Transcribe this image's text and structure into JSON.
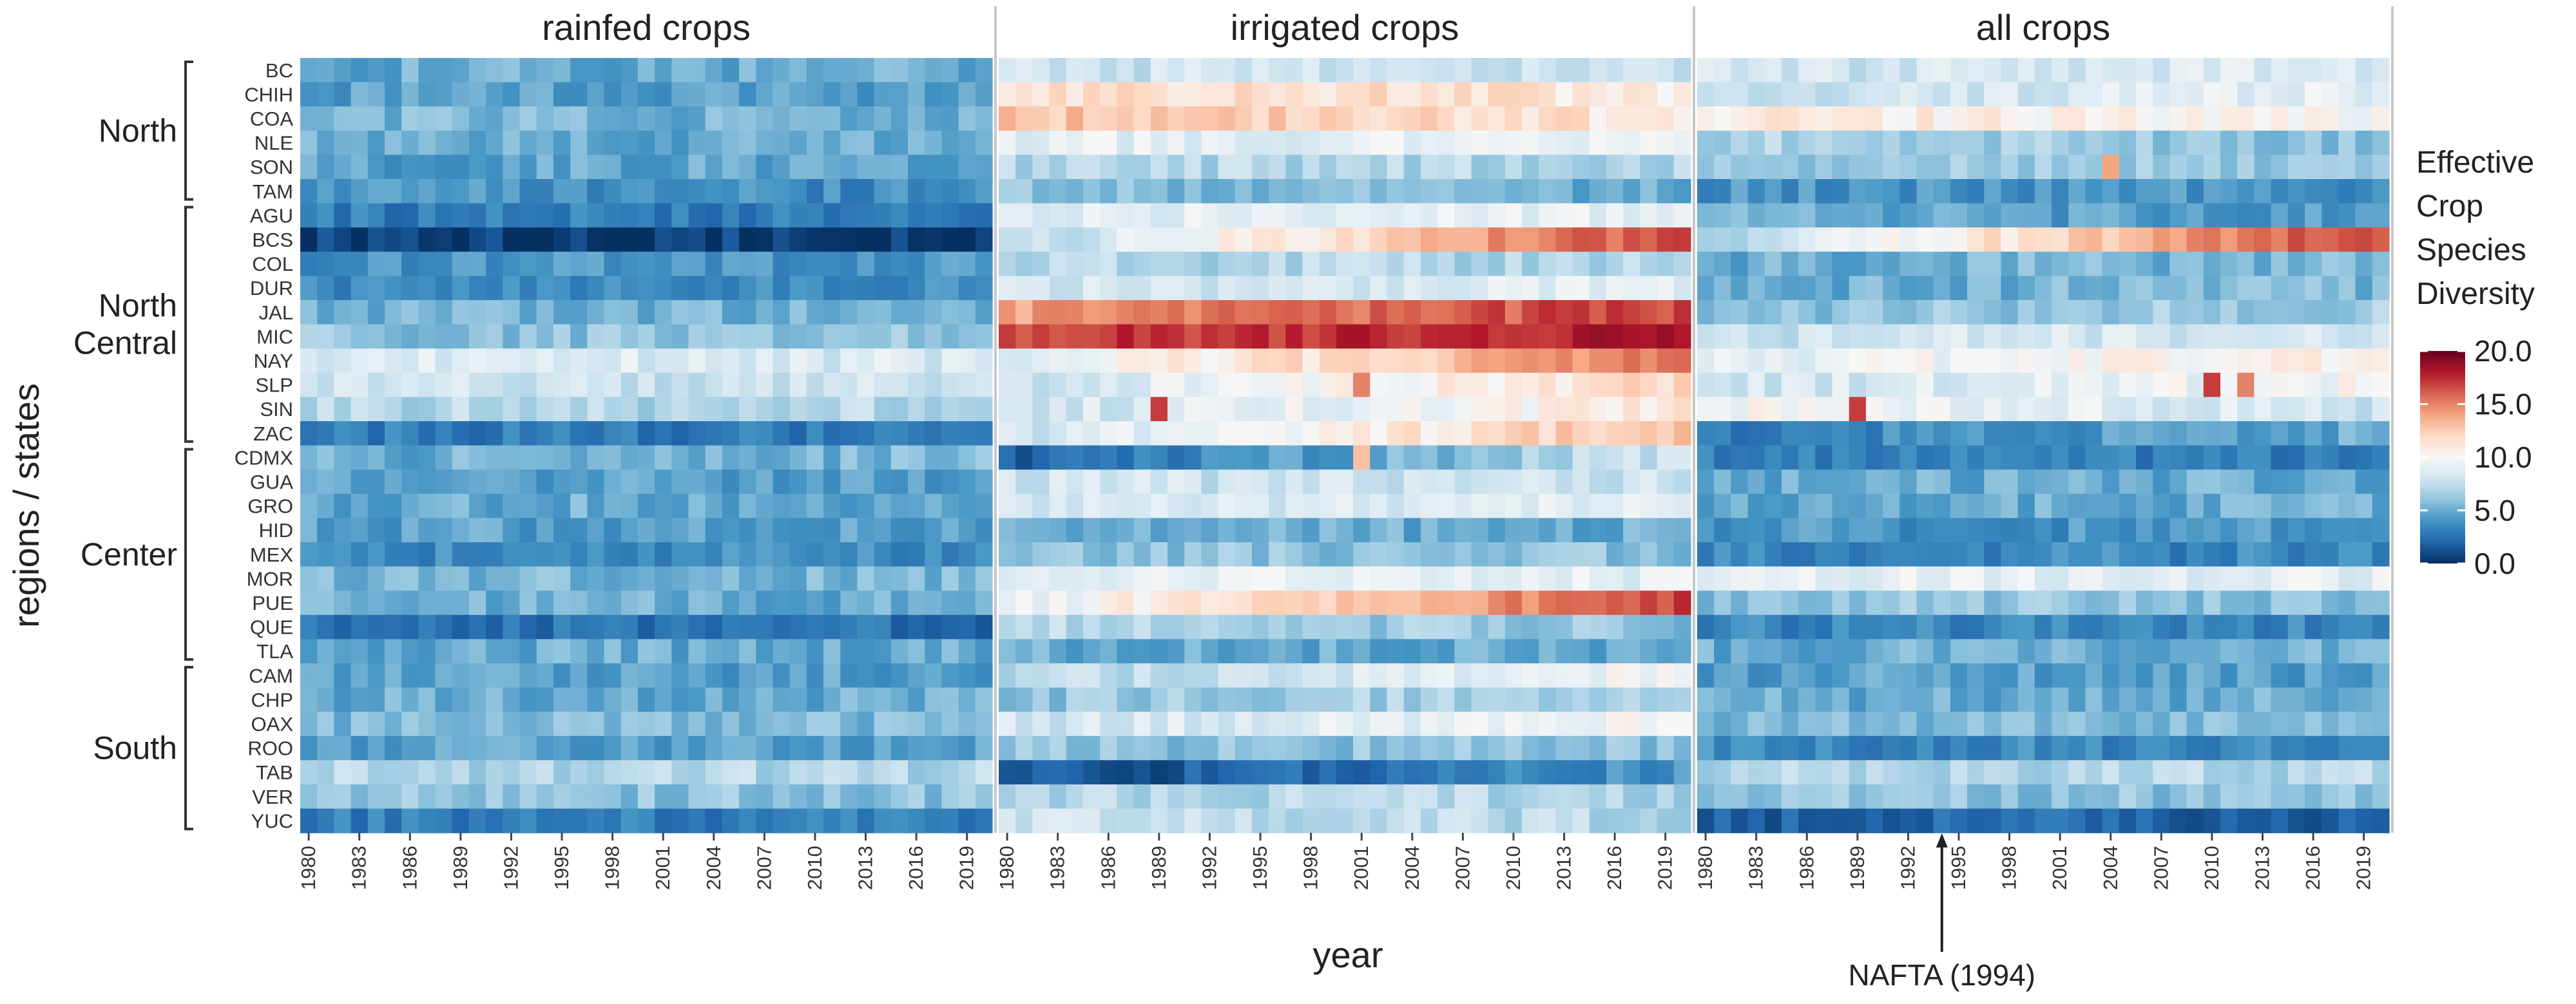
{
  "chart_data": {
    "type": "heatmap",
    "panels": [
      "rainfed crops",
      "irrigated crops",
      "all crops"
    ],
    "ylabel": "regions / states",
    "xlabel": "year",
    "years": [
      1980,
      1981,
      1982,
      1983,
      1984,
      1985,
      1986,
      1987,
      1988,
      1989,
      1990,
      1991,
      1992,
      1993,
      1994,
      1995,
      1996,
      1997,
      1998,
      1999,
      2000,
      2001,
      2002,
      2003,
      2004,
      2005,
      2006,
      2007,
      2008,
      2009,
      2010,
      2011,
      2012,
      2013,
      2014,
      2015,
      2016,
      2017,
      2018,
      2019,
      2020
    ],
    "year_tick_labels": [
      "1980",
      "1983",
      "1986",
      "1989",
      "1992",
      "1995",
      "1998",
      "2001",
      "2004",
      "2007",
      "2010",
      "2013",
      "2016",
      "2019"
    ],
    "regions": [
      {
        "name": "North",
        "states": [
          "BC",
          "CHIH",
          "COA",
          "NLE",
          "SON",
          "TAM"
        ]
      },
      {
        "name": "North Central",
        "lines": [
          "North",
          "Central"
        ],
        "states": [
          "AGU",
          "BCS",
          "COL",
          "DUR",
          "JAL",
          "MIC",
          "NAY",
          "SLP",
          "SIN",
          "ZAC"
        ]
      },
      {
        "name": "Center",
        "states": [
          "CDMX",
          "GUA",
          "GRO",
          "HID",
          "MEX",
          "MOR",
          "PUE",
          "QUE",
          "TLA"
        ]
      },
      {
        "name": "South",
        "states": [
          "CAM",
          "CHP",
          "OAX",
          "ROO",
          "TAB",
          "VER",
          "YUC"
        ]
      }
    ],
    "legend": {
      "title_lines": [
        "Effective",
        "Crop",
        "Species",
        "Diversity"
      ],
      "ticks": [
        "20.0",
        "15.0",
        "10.0",
        "5.0",
        "0.0"
      ],
      "range": [
        0,
        20
      ],
      "colors": [
        "#053061",
        "#2166ac",
        "#4393c3",
        "#92c5de",
        "#d1e5f0",
        "#f7f7f7",
        "#fddbc7",
        "#f4a582",
        "#d6604d",
        "#b2182b",
        "#67001f"
      ]
    },
    "approx_values": {
      "note": "Values estimated from color; each state gives start value (1980) and end value (2020) with linear trend; spikes are single-year outliers.",
      "rainfed crops": {
        "BC": [
          5,
          5
        ],
        "CHIH": [
          4.5,
          4.5
        ],
        "COA": [
          5.5,
          5
        ],
        "NLE": [
          5,
          5
        ],
        "SON": [
          4.5,
          5
        ],
        "TAM": [
          4,
          3.5
        ],
        "AGU": [
          3,
          3
        ],
        "BCS": [
          0.5,
          0.5
        ],
        "COL": [
          4,
          4
        ],
        "DUR": [
          3.5,
          3.5
        ],
        "JAL": [
          5,
          5.5
        ],
        "MIC": [
          6,
          6
        ],
        "NAY": [
          8.5,
          8.5
        ],
        "SLP": [
          8,
          8
        ],
        "SIN": [
          7,
          7
        ],
        "ZAC": [
          3,
          3
        ],
        "CDMX": [
          5,
          5.5
        ],
        "GUA": [
          4.5,
          4.5
        ],
        "GRO": [
          5,
          5
        ],
        "HID": [
          4.5,
          4.5
        ],
        "MEX": [
          3.5,
          3.5
        ],
        "MOR": [
          5.5,
          5.5
        ],
        "PUE": [
          5,
          5
        ],
        "QUE": [
          2.5,
          2.5
        ],
        "TLA": [
          5,
          5
        ],
        "CAM": [
          4.5,
          4.5
        ],
        "CHP": [
          5,
          5
        ],
        "OAX": [
          5.5,
          5.5
        ],
        "ROO": [
          4.5,
          4.5
        ],
        "TAB": [
          7,
          7
        ],
        "VER": [
          6,
          6
        ],
        "YUC": [
          3,
          3
        ]
      },
      "irrigated crops": {
        "BC": [
          8,
          8
        ],
        "CHIH": [
          12,
          11
        ],
        "COA": [
          13,
          11
        ],
        "NLE": [
          9,
          9
        ],
        "SON": [
          7,
          7
        ],
        "TAM": [
          6,
          5
        ],
        "AGU": [
          9,
          9
        ],
        "BCS": [
          7,
          17
        ],
        "COL": [
          7,
          7
        ],
        "DUR": [
          8,
          9
        ],
        "JAL": [
          14,
          17
        ],
        "MIC": [
          17,
          18
        ],
        "NAY": [
          9,
          15
        ],
        "SLP": [
          8,
          12
        ],
        "SIN": [
          8,
          11
        ],
        "ZAC": [
          8,
          13
        ],
        "CDMX": [
          1.5,
          8
        ],
        "GUA": [
          8,
          8
        ],
        "GRO": [
          8,
          9
        ],
        "HID": [
          5,
          5
        ],
        "MEX": [
          6,
          6
        ],
        "MOR": [
          9,
          9
        ],
        "PUE": [
          9,
          17
        ],
        "QUE": [
          7,
          6
        ],
        "TLA": [
          5,
          5
        ],
        "CAM": [
          7,
          10
        ],
        "CHP": [
          6,
          7
        ],
        "OAX": [
          8,
          10
        ],
        "ROO": [
          6,
          6
        ],
        "TAB": [
          1,
          4
        ],
        "VER": [
          7,
          7
        ],
        "YUC": [
          8,
          7
        ]
      },
      "all crops": {
        "BC": [
          8,
          8.5
        ],
        "CHIH": [
          8,
          9
        ],
        "COA": [
          11,
          10
        ],
        "NLE": [
          7,
          6
        ],
        "SON": [
          6,
          6.5
        ],
        "TAM": [
          4,
          4
        ],
        "AGU": [
          5,
          4
        ],
        "BCS": [
          7,
          17
        ],
        "COL": [
          5,
          5.5
        ],
        "DUR": [
          5,
          5.5
        ],
        "JAL": [
          6,
          6.5
        ],
        "MIC": [
          8,
          8.5
        ],
        "NAY": [
          9,
          11
        ],
        "SLP": [
          8,
          10
        ],
        "SIN": [
          10,
          8
        ],
        "ZAC": [
          3,
          5
        ],
        "CDMX": [
          3,
          3
        ],
        "GUA": [
          5,
          5
        ],
        "GRO": [
          5,
          5
        ],
        "HID": [
          4,
          4
        ],
        "MEX": [
          3.5,
          3.5
        ],
        "MOR": [
          9,
          9
        ],
        "PUE": [
          6,
          6
        ],
        "QUE": [
          3.5,
          3.5
        ],
        "TLA": [
          5,
          5
        ],
        "CAM": [
          4.5,
          4.5
        ],
        "CHP": [
          5,
          5
        ],
        "OAX": [
          5.5,
          5.5
        ],
        "ROO": [
          3.5,
          3.5
        ],
        "TAB": [
          7,
          7
        ],
        "VER": [
          6,
          6
        ],
        "YUC": [
          2,
          2
        ]
      }
    },
    "spikes": [
      {
        "panel": "irrigated crops",
        "state": "SIN",
        "year": 1989,
        "value": 17
      },
      {
        "panel": "all crops",
        "state": "SIN",
        "year": 1989,
        "value": 17
      },
      {
        "panel": "all crops",
        "state": "SLP",
        "year": 2010,
        "value": 17
      },
      {
        "panel": "all crops",
        "state": "SLP",
        "year": 2012,
        "value": 15
      },
      {
        "panel": "all crops",
        "state": "SON",
        "year": 2004,
        "value": 14
      },
      {
        "panel": "irrigated crops",
        "state": "CDMX",
        "year": 2001,
        "value": 13
      },
      {
        "panel": "irrigated crops",
        "state": "SLP",
        "year": 2001,
        "value": 15
      }
    ],
    "annotations": [
      {
        "text": "NAFTA (1994)",
        "year": 1994,
        "panel": "all crops"
      }
    ]
  }
}
